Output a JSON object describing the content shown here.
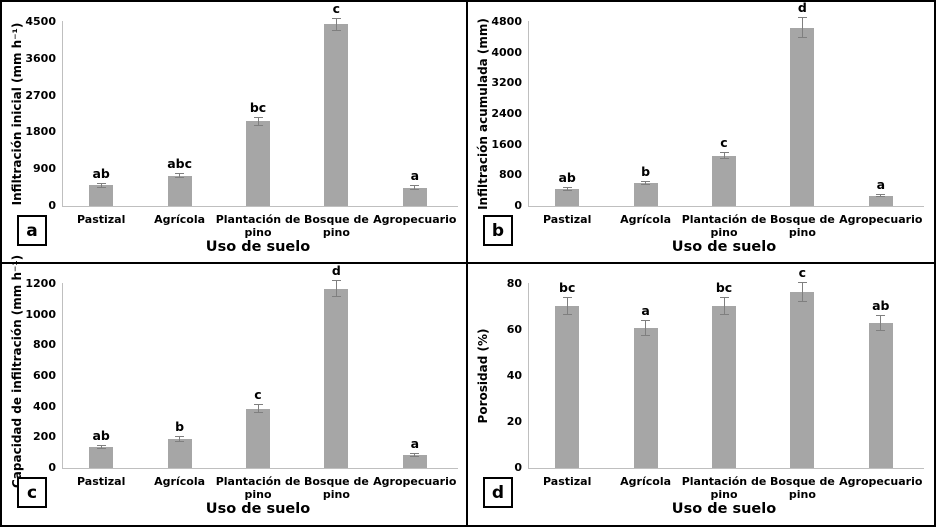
{
  "colors": {
    "bar": "#a6a6a6",
    "error_bar": "#7f7f7f",
    "axis_line": "#bfbfbf",
    "text": "#000000",
    "background": "#ffffff",
    "border": "#000000"
  },
  "chart_data": [
    {
      "type": "bar",
      "panel_letter": "a",
      "title": "",
      "ylabel": "Infiltración inicial (mm h⁻¹)",
      "xlabel": "Uso de suelo",
      "categories": [
        "Pastizal",
        "Agrícola",
        "Plantación de pino",
        "Bosque de pino",
        "Agropecuario"
      ],
      "values": [
        510,
        745,
        2070,
        4440,
        450
      ],
      "errors": [
        35,
        40,
        90,
        130,
        30
      ],
      "sig_letters": [
        "ab",
        "abc",
        "bc",
        "c",
        "a"
      ],
      "ylim": [
        0,
        4500
      ],
      "yticks": [
        0,
        900,
        1800,
        2700,
        3600,
        4500
      ],
      "grid": "off",
      "legend": "none"
    },
    {
      "type": "bar",
      "panel_letter": "b",
      "title": "",
      "ylabel": "Infiltración acumulada (mm)",
      "xlabel": "Uso de suelo",
      "categories": [
        "Pastizal",
        "Agrícola",
        "Plantación de pino",
        "Bosque de pino",
        "Agropecuario"
      ],
      "values": [
        440,
        600,
        1310,
        4650,
        270
      ],
      "errors": [
        35,
        25,
        70,
        250,
        15
      ],
      "sig_letters": [
        "ab",
        "b",
        "c",
        "d",
        "a"
      ],
      "ylim": [
        0,
        4800
      ],
      "yticks": [
        0,
        800,
        1600,
        2400,
        3200,
        4000,
        4800
      ],
      "grid": "off",
      "legend": "none"
    },
    {
      "type": "bar",
      "panel_letter": "c",
      "title": "",
      "ylabel": "Capacidad de infiltración  (mm h⁻¹)",
      "xlabel": "Uso de suelo",
      "categories": [
        "Pastizal",
        "Agrícola",
        "Plantación de pino",
        "Bosque de pino",
        "Agropecuario"
      ],
      "values": [
        138,
        190,
        388,
        1170,
        87
      ],
      "errors": [
        8,
        12,
        22,
        50,
        7
      ],
      "sig_letters": [
        "ab",
        "b",
        "c",
        "d",
        "a"
      ],
      "ylim": [
        0,
        1200
      ],
      "yticks": [
        0,
        200,
        400,
        600,
        800,
        1000,
        1200
      ],
      "grid": "off",
      "legend": "none"
    },
    {
      "type": "bar",
      "panel_letter": "d",
      "title": "",
      "ylabel": "Porosidad (%)",
      "xlabel": "Uso de suelo",
      "categories": [
        "Pastizal",
        "Agrícola",
        "Plantación de pino",
        "Bosque de pino",
        "Agropecuario"
      ],
      "values": [
        70.5,
        61,
        70.5,
        76.5,
        63
      ],
      "errors": [
        3.5,
        3,
        3.5,
        4,
        3
      ],
      "sig_letters": [
        "bc",
        "a",
        "bc",
        "c",
        "ab"
      ],
      "ylim": [
        0,
        80
      ],
      "yticks": [
        0,
        20,
        40,
        60,
        80
      ],
      "grid": "off",
      "legend": "none"
    }
  ]
}
